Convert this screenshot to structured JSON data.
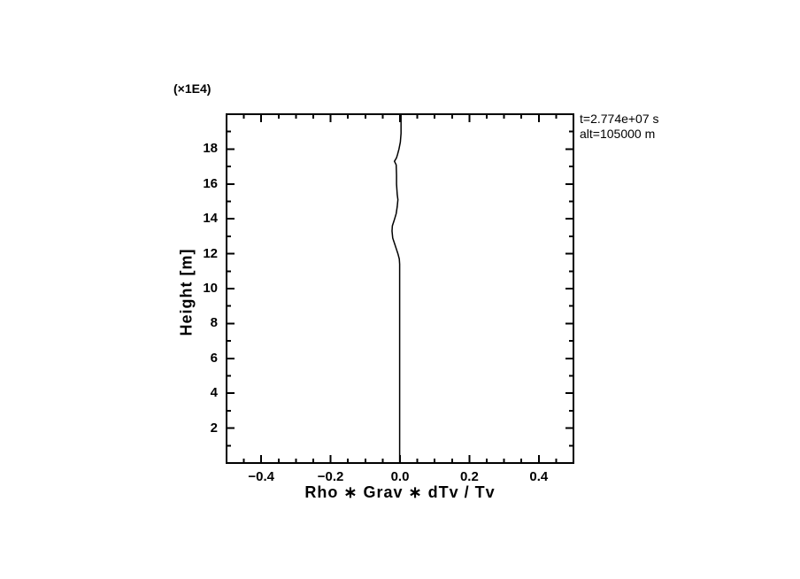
{
  "chart_data": {
    "type": "line",
    "title": "",
    "xlabel": "Rho ∗ Grav ∗ dTv / Tv",
    "ylabel": "Height [m]",
    "y_multiplier_label": "(×1E4)",
    "annotations": [
      "t=2.774e+07 s",
      "alt=105000 m"
    ],
    "xlim": [
      -0.5,
      0.5
    ],
    "ylim": [
      0,
      20
    ],
    "x_major_ticks": [
      -0.4,
      -0.2,
      0.0,
      0.2,
      0.4
    ],
    "x_tick_labels": [
      "−0.4",
      "−0.2",
      "0.0",
      "0.2",
      "0.4"
    ],
    "x_minor_step": 0.05,
    "y_major_ticks": [
      2,
      4,
      6,
      8,
      10,
      12,
      14,
      16,
      18
    ],
    "y_tick_labels": [
      "2",
      "4",
      "6",
      "8",
      "10",
      "12",
      "14",
      "16",
      "18"
    ],
    "y_minor_step": 1,
    "grid": false,
    "legend": null,
    "frame_color": "#000000",
    "line_color": "#000000",
    "background_color": "#ffffff",
    "series": [
      {
        "name": "rho-grav-dtv-tv-profile",
        "points": [
          [
            0.003,
            20.0
          ],
          [
            0.003,
            18.9
          ],
          [
            0.001,
            18.4
          ],
          [
            -0.003,
            18.0
          ],
          [
            -0.007,
            17.7
          ],
          [
            -0.01,
            17.5
          ],
          [
            -0.016,
            17.3
          ],
          [
            -0.011,
            17.1
          ],
          [
            -0.01,
            16.5
          ],
          [
            -0.01,
            16.0
          ],
          [
            -0.008,
            15.4
          ],
          [
            -0.006,
            15.1
          ],
          [
            -0.008,
            14.7
          ],
          [
            -0.011,
            14.3
          ],
          [
            -0.017,
            13.9
          ],
          [
            -0.022,
            13.6
          ],
          [
            -0.023,
            13.3
          ],
          [
            -0.021,
            12.9
          ],
          [
            -0.016,
            12.6
          ],
          [
            -0.011,
            12.3
          ],
          [
            -0.006,
            12.0
          ],
          [
            -0.002,
            11.7
          ],
          [
            -0.001,
            11.4
          ],
          [
            -0.001,
            8.0
          ],
          [
            -0.001,
            4.0
          ],
          [
            -0.001,
            0.0
          ]
        ]
      }
    ]
  }
}
